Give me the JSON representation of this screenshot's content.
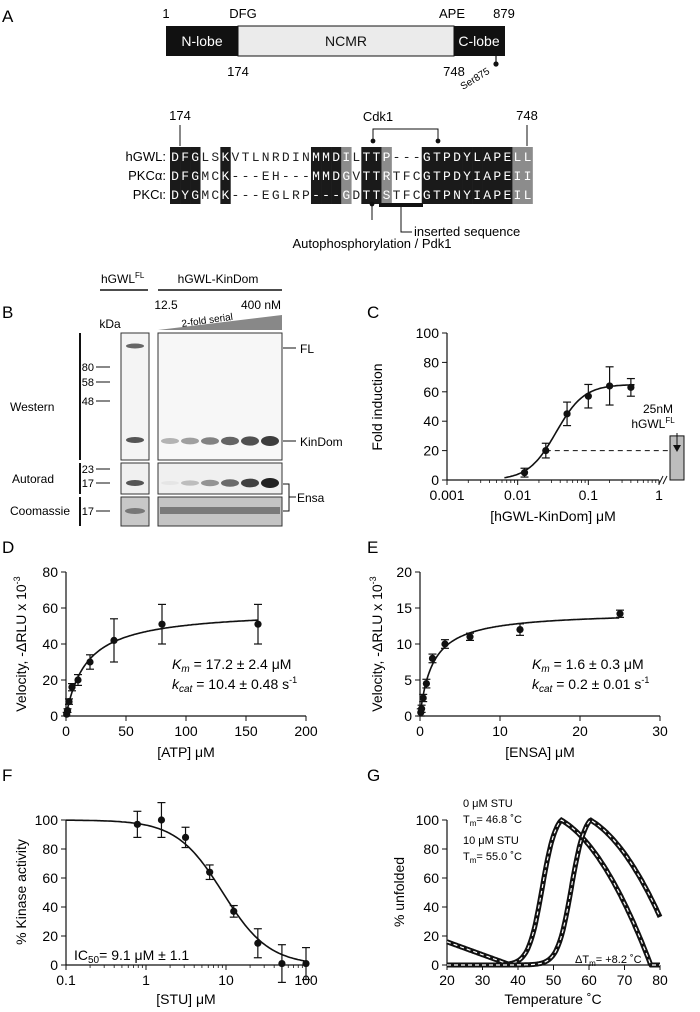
{
  "panels": {
    "A": {
      "letter": "A",
      "domain_bar": {
        "start_label": "1",
        "end_label": "879",
        "dfg_label": "DFG",
        "ape_label": "APE",
        "nlobe_label": "N-lobe",
        "ncmr_label": "NCMR",
        "clobe_label": "C-lobe",
        "pos_174": "174",
        "pos_748": "748",
        "ser_label": "Ser875"
      },
      "alignment": {
        "pos_174": "174",
        "pos_748": "748",
        "cdk1_label": "Cdk1",
        "rows": [
          {
            "name": "hGWL:",
            "seq": "DFGLSKVTLNRDINMMDILTTP---GTPDYLAPELL"
          },
          {
            "name": "PKCα:",
            "seq": "DFGMCK---EH---MMDGVTTRTFCGTPDYIAPEII"
          },
          {
            "name": "PKCι:",
            "seq": "DYGMCK---EGLRP---GDTTSTFCGTPNYIAPEIL"
          }
        ],
        "autophos_label": "Autophosphorylation / Pdk1",
        "inserted_label": "inserted sequence"
      }
    },
    "B": {
      "letter": "B",
      "fl_header": "hGWL",
      "fl_sup": "FL",
      "kindom_header": "hGWL-KinDom",
      "conc_low": "12.5",
      "conc_high": "400 nM",
      "serial_label": "2-fold serial",
      "kda_label": "kDa",
      "western_label": "Western",
      "autorad_label": "Autorad",
      "coomassie_label": "Coomassie",
      "markers_western": [
        "80",
        "58",
        "48"
      ],
      "markers_autorad": [
        "23",
        "17"
      ],
      "markers_coomassie": [
        "17"
      ],
      "fl_band_label": "FL",
      "kindom_band_label": "KinDom",
      "ensa_label": "Ensa"
    },
    "C": {
      "letter": "C",
      "ref_label_1": "25nM",
      "ref_label_2": "hGWL",
      "ref_sup": "FL"
    },
    "D": {
      "letter": "D"
    },
    "E": {
      "letter": "E"
    },
    "F": {
      "letter": "F"
    },
    "G": {
      "letter": "G",
      "label_0": "0 μM STU",
      "tm_0": "46.8 ˚C",
      "label_10": "10 μM STU",
      "tm_10": "55.0 ˚C",
      "tm_prefix": "T",
      "tm_sub": "m",
      "delta_text": "= +8.2 ˚C"
    }
  },
  "chart_data": [
    {
      "id": "C",
      "type": "line",
      "xscale": "log",
      "xlabel": "[hGWL-KinDom] μM",
      "ylabel": "Fold induction",
      "xlim": [
        0.001,
        1
      ],
      "ylim": [
        0,
        100
      ],
      "xticks": [
        "0.001",
        "0.01",
        "0.1",
        "1"
      ],
      "yticks": [
        "0",
        "20",
        "40",
        "60",
        "80",
        "100"
      ],
      "points": [
        {
          "x": 0.0125,
          "y": 5,
          "err": 3
        },
        {
          "x": 0.025,
          "y": 20,
          "err": 5
        },
        {
          "x": 0.05,
          "y": 45,
          "err": 8
        },
        {
          "x": 0.1,
          "y": 57,
          "err": 8
        },
        {
          "x": 0.2,
          "y": 64,
          "err": 13
        },
        {
          "x": 0.4,
          "y": 63,
          "err": 6
        }
      ],
      "fit": {
        "bottom": 0,
        "top": 65,
        "ec50": 0.035,
        "hill": 2.2
      },
      "reference_bar": {
        "value": 30
      },
      "dashed_level": 20
    },
    {
      "id": "D",
      "type": "line",
      "xlabel": "[ATP] μM",
      "ylabel": "Velocity, -ΔRLU x 10",
      "ylabel_sup": "-3",
      "xlim": [
        0,
        200
      ],
      "ylim": [
        0,
        80
      ],
      "xticks": [
        "0",
        "50",
        "100",
        "150",
        "200"
      ],
      "yticks": [
        "0",
        "20",
        "40",
        "60",
        "80"
      ],
      "points": [
        {
          "x": 0.6,
          "y": 1,
          "err": 1
        },
        {
          "x": 1.25,
          "y": 3,
          "err": 1
        },
        {
          "x": 2.5,
          "y": 8,
          "err": 1.5
        },
        {
          "x": 5,
          "y": 16,
          "err": 2
        },
        {
          "x": 10,
          "y": 20,
          "err": 3
        },
        {
          "x": 20,
          "y": 30,
          "err": 4
        },
        {
          "x": 40,
          "y": 42,
          "err": 12
        },
        {
          "x": 80,
          "y": 51,
          "err": 11
        },
        {
          "x": 160,
          "y": 51,
          "err": 11
        }
      ],
      "fit": {
        "vmax": 59,
        "km": 17.2
      },
      "annotations": {
        "km_text": "= 17.2 ± 2.4 μM",
        "kcat_text": "= 10.4 ± 0.48 s",
        "kcat_sup": "-1",
        "k_letter": "K",
        "k_sub": "m",
        "kc_letter": "k",
        "kc_sub": "cat"
      }
    },
    {
      "id": "E",
      "type": "line",
      "xlabel": "[ENSA] μM",
      "ylabel": "Velocity, -ΔRLU x 10",
      "ylabel_sup": "-3",
      "xlim": [
        0,
        30
      ],
      "ylim": [
        0,
        20
      ],
      "xticks": [
        "0",
        "10",
        "20",
        "30"
      ],
      "yticks": [
        "0",
        "5",
        "10",
        "15",
        "20"
      ],
      "points": [
        {
          "x": 0.1,
          "y": 0.5,
          "err": 0.5
        },
        {
          "x": 0.2,
          "y": 1,
          "err": 0.5
        },
        {
          "x": 0.4,
          "y": 2.5,
          "err": 0.5
        },
        {
          "x": 0.8,
          "y": 4.5,
          "err": 0.6
        },
        {
          "x": 1.56,
          "y": 8,
          "err": 0.6
        },
        {
          "x": 3.12,
          "y": 10,
          "err": 0.6
        },
        {
          "x": 6.25,
          "y": 11,
          "err": 0.5
        },
        {
          "x": 12.5,
          "y": 12,
          "err": 0.8
        },
        {
          "x": 25,
          "y": 14.2,
          "err": 0.5
        }
      ],
      "fit": {
        "vmax": 14.5,
        "km": 1.6
      },
      "annotations": {
        "km_text": "= 1.6 ± 0.3 μM",
        "kcat_text": "= 0.2 ± 0.01 s",
        "kcat_sup": "-1",
        "k_letter": "K",
        "k_sub": "m",
        "kc_letter": "k",
        "kc_sub": "cat"
      }
    },
    {
      "id": "F",
      "type": "line",
      "xscale": "log",
      "xlabel": "[STU] μM",
      "ylabel": "% Kinase activity",
      "xlim": [
        0.1,
        100
      ],
      "ylim": [
        0,
        100
      ],
      "xticks": [
        "0.1",
        "1",
        "10",
        "100"
      ],
      "yticks": [
        "0",
        "20",
        "40",
        "60",
        "80",
        "100"
      ],
      "points": [
        {
          "x": 0.78,
          "y": 97,
          "err": 9
        },
        {
          "x": 1.56,
          "y": 100,
          "err": 12
        },
        {
          "x": 3.12,
          "y": 88,
          "err": 7
        },
        {
          "x": 6.25,
          "y": 64,
          "err": 5
        },
        {
          "x": 12.5,
          "y": 37,
          "err": 4
        },
        {
          "x": 25,
          "y": 15,
          "err": 10
        },
        {
          "x": 50,
          "y": 1,
          "err": 13
        },
        {
          "x": 100,
          "y": 1,
          "err": 11
        }
      ],
      "fit": {
        "top": 100,
        "bottom": 0,
        "ic50": 9.1,
        "hill": 1.5
      },
      "annotation": {
        "prefix": "IC",
        "sub": "50",
        "text": "= 9.1 μM ± 1.1"
      }
    },
    {
      "id": "G",
      "type": "line",
      "xlabel": "Temperature ˚C",
      "ylabel": "% unfolded",
      "xlim": [
        20,
        80
      ],
      "ylim": [
        0,
        100
      ],
      "xticks": [
        "20",
        "30",
        "40",
        "50",
        "60",
        "70",
        "80"
      ],
      "yticks": [
        "0",
        "20",
        "40",
        "60",
        "80",
        "100"
      ],
      "series": [
        {
          "name": "0 μM STU",
          "tm": 46.8
        },
        {
          "name": "10 μM STU",
          "tm": 55.0
        }
      ]
    }
  ]
}
